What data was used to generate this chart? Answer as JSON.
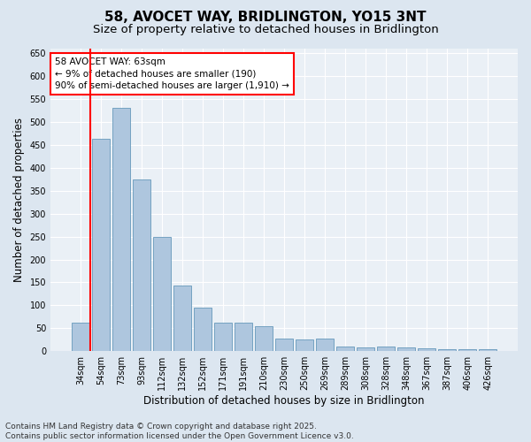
{
  "title": "58, AVOCET WAY, BRIDLINGTON, YO15 3NT",
  "subtitle": "Size of property relative to detached houses in Bridlington",
  "xlabel": "Distribution of detached houses by size in Bridlington",
  "ylabel": "Number of detached properties",
  "categories": [
    "34sqm",
    "54sqm",
    "73sqm",
    "93sqm",
    "112sqm",
    "132sqm",
    "152sqm",
    "171sqm",
    "191sqm",
    "210sqm",
    "230sqm",
    "250sqm",
    "269sqm",
    "289sqm",
    "308sqm",
    "328sqm",
    "348sqm",
    "367sqm",
    "387sqm",
    "406sqm",
    "426sqm"
  ],
  "values": [
    63,
    463,
    530,
    375,
    250,
    143,
    95,
    63,
    63,
    55,
    28,
    25,
    28,
    10,
    8,
    10,
    8,
    6,
    5,
    5,
    4
  ],
  "bar_color": "#aec6de",
  "bar_edge_color": "#6699bb",
  "vline_color": "red",
  "vline_position": 0.5,
  "annotation_text": "58 AVOCET WAY: 63sqm\n← 9% of detached houses are smaller (190)\n90% of semi-detached houses are larger (1,910) →",
  "annotation_box_color": "red",
  "ylim": [
    0,
    660
  ],
  "yticks": [
    0,
    50,
    100,
    150,
    200,
    250,
    300,
    350,
    400,
    450,
    500,
    550,
    600,
    650
  ],
  "footer_line1": "Contains HM Land Registry data © Crown copyright and database right 2025.",
  "footer_line2": "Contains public sector information licensed under the Open Government Licence v3.0.",
  "bg_color": "#dce6f0",
  "plot_bg_color": "#eaf0f6",
  "title_fontsize": 11,
  "subtitle_fontsize": 9.5,
  "axis_label_fontsize": 8.5,
  "tick_fontsize": 7,
  "footer_fontsize": 6.5,
  "annotation_fontsize": 7.5
}
